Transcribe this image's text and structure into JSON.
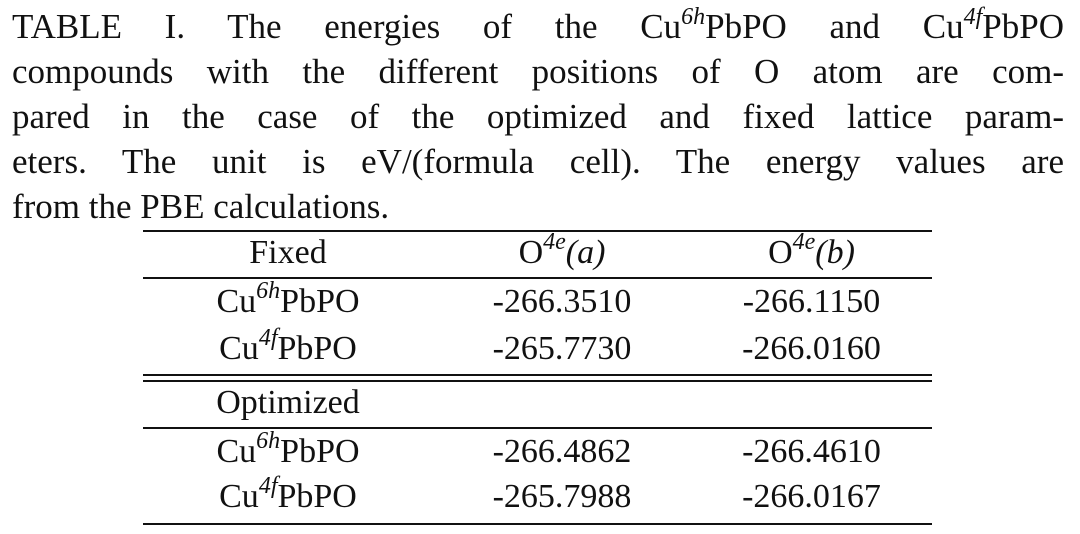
{
  "caption": {
    "lines": [
      [
        "TABLE I. The energies of the Cu",
        "6h",
        "PbPO and Cu",
        "4f",
        "PbPO"
      ],
      [
        "compounds with the different positions of O atom are com-"
      ],
      [
        "pared in the case of the optimized and fixed lattice param-"
      ],
      [
        "eters. The unit is eV/(formula cell). The energy values are"
      ],
      [
        "from the PBE calculations."
      ]
    ]
  },
  "table": {
    "columns": [
      {
        "base": "O",
        "sup": "4e",
        "rest": "(a)"
      },
      {
        "base": "O",
        "sup": "4e",
        "rest": "(b)"
      }
    ],
    "sections": [
      {
        "label": "Fixed",
        "rows": [
          {
            "compound": {
              "base": "Cu",
              "sup": "6h",
              "rest": "PbPO"
            },
            "values": [
              "-266.3510",
              "-266.1150"
            ]
          },
          {
            "compound": {
              "base": "Cu",
              "sup": "4f",
              "rest": "PbPO"
            },
            "values": [
              "-265.7730",
              "-266.0160"
            ]
          }
        ]
      },
      {
        "label": "Optimized",
        "rows": [
          {
            "compound": {
              "base": "Cu",
              "sup": "6h",
              "rest": "PbPO"
            },
            "values": [
              "-266.4862",
              "-266.4610"
            ]
          },
          {
            "compound": {
              "base": "Cu",
              "sup": "4f",
              "rest": "PbPO"
            },
            "values": [
              "-265.7988",
              "-266.0167"
            ]
          }
        ]
      }
    ]
  }
}
